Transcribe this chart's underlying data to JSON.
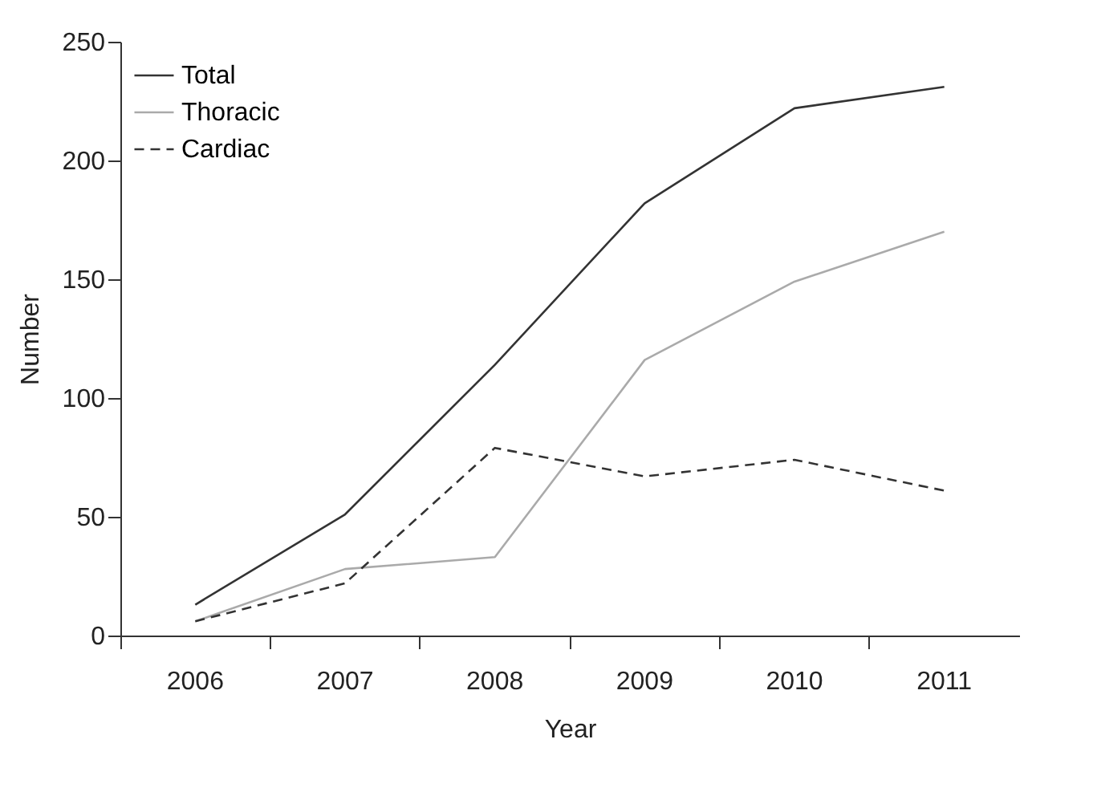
{
  "chart_data": {
    "type": "line",
    "xlabel": "Year",
    "ylabel": "Number",
    "categories": [
      "2006",
      "2007",
      "2008",
      "2009",
      "2010",
      "2011"
    ],
    "series": [
      {
        "name": "Total",
        "color": "#333333",
        "line_style": "solid",
        "values": [
          13,
          51,
          114,
          182,
          222,
          231
        ]
      },
      {
        "name": "Thoracic",
        "color": "#aaaaaa",
        "line_style": "solid",
        "values": [
          6,
          28,
          33,
          116,
          149,
          170
        ]
      },
      {
        "name": "Cardiac",
        "color": "#333333",
        "line_style": "dashed",
        "values": [
          6,
          22,
          79,
          67,
          74,
          61
        ]
      }
    ],
    "ylim": [
      0,
      250
    ],
    "yticks": [
      0,
      50,
      100,
      150,
      200,
      250
    ],
    "grid": false,
    "legend": "top left",
    "marker": "none"
  }
}
